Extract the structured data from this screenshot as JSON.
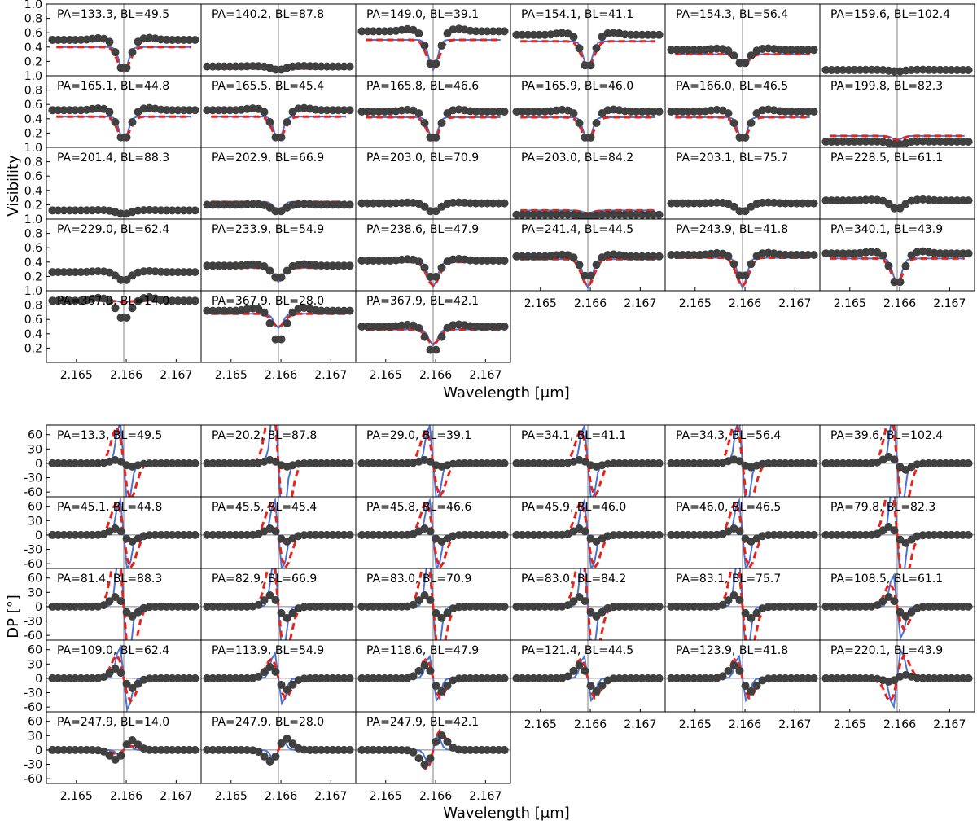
{
  "colors": {
    "data": "#404040",
    "model_blue": "#4b72d6",
    "model_red": "#e8231a",
    "guide": "#808080",
    "frame": "#000000"
  },
  "chart_data": [
    {
      "type": "line",
      "name": "visibility-grid",
      "ylabel": "Visibility",
      "xlabel": "Wavelength [μm]",
      "xlim": [
        2.1644,
        2.1675
      ],
      "ylim": [
        0.0,
        1.0
      ],
      "yticks": [
        0.2,
        0.4,
        0.6,
        0.8,
        1.0
      ],
      "xticks": [
        2.165,
        2.166,
        2.167
      ],
      "line_center": 2.16595,
      "legend": null,
      "panels": [
        {
          "label": "PA=133.3, BL=49.5",
          "base": 0.5,
          "depth": 0.43,
          "model_base": 0.4,
          "model_depth": 0.35
        },
        {
          "label": "PA=140.2, BL=87.8",
          "base": 0.13,
          "depth": 0.05,
          "model_base": 0.1,
          "model_depth": 0.03
        },
        {
          "label": "PA=149.0, BL=39.1",
          "base": 0.62,
          "depth": 0.5,
          "model_base": 0.5,
          "model_depth": 0.42
        },
        {
          "label": "PA=154.1, BL=41.1",
          "base": 0.57,
          "depth": 0.47,
          "model_base": 0.48,
          "model_depth": 0.38
        },
        {
          "label": "PA=154.3, BL=56.4",
          "base": 0.36,
          "depth": 0.2,
          "model_base": 0.3,
          "model_depth": 0.16
        },
        {
          "label": "PA=159.6, BL=102.4",
          "base": 0.08,
          "depth": 0.02,
          "model_base": 0.1,
          "model_depth": 0.02
        },
        {
          "label": "PA=165.1, BL=44.8",
          "base": 0.52,
          "depth": 0.42,
          "model_base": 0.43,
          "model_depth": 0.34
        },
        {
          "label": "PA=165.5, BL=45.4",
          "base": 0.52,
          "depth": 0.42,
          "model_base": 0.43,
          "model_depth": 0.34
        },
        {
          "label": "PA=165.8, BL=46.6",
          "base": 0.5,
          "depth": 0.4,
          "model_base": 0.42,
          "model_depth": 0.33
        },
        {
          "label": "PA=165.9, BL=46.0",
          "base": 0.5,
          "depth": 0.4,
          "model_base": 0.42,
          "model_depth": 0.33
        },
        {
          "label": "PA=166.0, BL=46.5",
          "base": 0.5,
          "depth": 0.4,
          "model_base": 0.42,
          "model_depth": 0.33
        },
        {
          "label": "PA=199.8, BL=82.3",
          "base": 0.08,
          "depth": 0.04,
          "model_base": 0.16,
          "model_depth": 0.06
        },
        {
          "label": "PA=201.4, BL=88.3",
          "base": 0.12,
          "depth": 0.05,
          "model_base": 0.12,
          "model_depth": 0.04
        },
        {
          "label": "PA=202.9, BL=66.9",
          "base": 0.2,
          "depth": 0.1,
          "model_base": 0.24,
          "model_depth": 0.12
        },
        {
          "label": "PA=203.0, BL=70.9",
          "base": 0.22,
          "depth": 0.12,
          "model_base": 0.2,
          "model_depth": 0.1
        },
        {
          "label": "PA=203.0, BL=84.2",
          "base": 0.06,
          "depth": 0.02,
          "model_base": 0.12,
          "model_depth": 0.04
        },
        {
          "label": "PA=203.1, BL=75.7",
          "base": 0.22,
          "depth": 0.12,
          "model_base": 0.2,
          "model_depth": 0.1
        },
        {
          "label": "PA=228.5, BL=61.1",
          "base": 0.26,
          "depth": 0.12,
          "model_base": 0.26,
          "model_depth": 0.1
        },
        {
          "label": "PA=229.0, BL=62.4",
          "base": 0.26,
          "depth": 0.12,
          "model_base": 0.26,
          "model_depth": 0.1
        },
        {
          "label": "PA=233.9, BL=54.9",
          "base": 0.35,
          "depth": 0.18,
          "model_base": 0.32,
          "model_depth": 0.2
        },
        {
          "label": "PA=238.6, BL=47.9",
          "base": 0.42,
          "depth": 0.25,
          "model_base": 0.4,
          "model_depth": 0.35
        },
        {
          "label": "PA=241.4, BL=44.5",
          "base": 0.48,
          "depth": 0.3,
          "model_base": 0.44,
          "model_depth": 0.4
        },
        {
          "label": "PA=243.9, BL=41.8",
          "base": 0.5,
          "depth": 0.32,
          "model_base": 0.46,
          "model_depth": 0.42
        },
        {
          "label": "PA=340.1, BL=43.9",
          "base": 0.52,
          "depth": 0.44,
          "model_base": 0.45,
          "model_depth": 0.35
        },
        {
          "label": "PA=367.9, BL=14.0",
          "base": 0.86,
          "depth": 0.26,
          "model_base": 0.86,
          "model_depth": 0.02
        },
        {
          "label": "PA=367.9, BL=28.0",
          "base": 0.72,
          "depth": 0.44,
          "model_base": 0.68,
          "model_depth": 0.2
        },
        {
          "label": "PA=367.9, BL=42.1",
          "base": 0.5,
          "depth": 0.36,
          "model_base": 0.46,
          "model_depth": 0.22
        }
      ]
    },
    {
      "type": "line",
      "name": "differential-phase-grid",
      "ylabel": "DP [°]",
      "xlabel": "Wavelength [μm]",
      "xlim": [
        2.1644,
        2.1675
      ],
      "ylim": [
        -70,
        80
      ],
      "yticks": [
        -60,
        -30,
        0,
        30,
        60
      ],
      "xticks": [
        2.165,
        2.166,
        2.167
      ],
      "line_center": 2.16595,
      "legend": null,
      "panels": [
        {
          "label": "PA=13.3, BL=49.5",
          "amp": 10,
          "model_amp": 110,
          "blue_amp": 130
        },
        {
          "label": "PA=20.2, BL=87.8",
          "amp": 10,
          "model_amp": 200,
          "blue_amp": 200
        },
        {
          "label": "PA=29.0, BL=39.1",
          "amp": 10,
          "model_amp": 100,
          "blue_amp": 120
        },
        {
          "label": "PA=34.1, BL=41.1",
          "amp": 10,
          "model_amp": 100,
          "blue_amp": 120
        },
        {
          "label": "PA=34.3, BL=56.4",
          "amp": 12,
          "model_amp": 130,
          "blue_amp": 140
        },
        {
          "label": "PA=39.6, BL=102.4",
          "amp": 20,
          "model_amp": 150,
          "blue_amp": 150
        },
        {
          "label": "PA=45.1, BL=44.8",
          "amp": 20,
          "model_amp": 100,
          "blue_amp": 110
        },
        {
          "label": "PA=45.5, BL=45.4",
          "amp": 20,
          "model_amp": 100,
          "blue_amp": 110
        },
        {
          "label": "PA=45.8, BL=46.6",
          "amp": 20,
          "model_amp": 100,
          "blue_amp": 110
        },
        {
          "label": "PA=45.9, BL=46.0",
          "amp": 20,
          "model_amp": 100,
          "blue_amp": 110
        },
        {
          "label": "PA=46.0, BL=46.5",
          "amp": 20,
          "model_amp": 100,
          "blue_amp": 110
        },
        {
          "label": "PA=79.8, BL=82.3",
          "amp": 25,
          "model_amp": 160,
          "blue_amp": 160
        },
        {
          "label": "PA=81.4, BL=88.3",
          "amp": 30,
          "model_amp": 180,
          "blue_amp": 180
        },
        {
          "label": "PA=82.9, BL=66.9",
          "amp": 35,
          "model_amp": 150,
          "blue_amp": 150
        },
        {
          "label": "PA=83.0, BL=70.9",
          "amp": 35,
          "model_amp": 160,
          "blue_amp": 160
        },
        {
          "label": "PA=83.0, BL=84.2",
          "amp": 30,
          "model_amp": 170,
          "blue_amp": 170
        },
        {
          "label": "PA=83.1, BL=75.7",
          "amp": 35,
          "model_amp": 160,
          "blue_amp": 160
        },
        {
          "label": "PA=108.5, BL=61.1",
          "amp": 30,
          "model_amp": 70,
          "blue_amp": 100
        },
        {
          "label": "PA=109.0, BL=62.4",
          "amp": 30,
          "model_amp": 70,
          "blue_amp": 100
        },
        {
          "label": "PA=113.9, BL=54.9",
          "amp": 35,
          "model_amp": 60,
          "blue_amp": 80
        },
        {
          "label": "PA=118.6, BL=47.9",
          "amp": 40,
          "model_amp": 60,
          "blue_amp": 70
        },
        {
          "label": "PA=121.4, BL=44.5",
          "amp": 40,
          "model_amp": 60,
          "blue_amp": 70
        },
        {
          "label": "PA=123.9, BL=41.8",
          "amp": 40,
          "model_amp": 60,
          "blue_amp": 70
        },
        {
          "label": "PA=220.1, BL=43.9",
          "amp": -10,
          "model_amp": -70,
          "blue_amp": -90
        },
        {
          "label": "PA=247.9, BL=14.0",
          "amp": -30,
          "model_amp": -12,
          "blue_amp": -15
        },
        {
          "label": "PA=247.9, BL=28.0",
          "amp": -35,
          "model_amp": -30,
          "blue_amp": -30
        },
        {
          "label": "PA=247.9, BL=42.1",
          "amp": -45,
          "model_amp": -60,
          "blue_amp": -45
        }
      ]
    }
  ]
}
